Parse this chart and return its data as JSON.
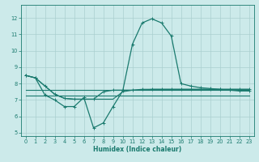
{
  "title": "",
  "xlabel": "Humidex (Indice chaleur)",
  "bg_color": "#cceaea",
  "grid_color": "#aacfcf",
  "line_color": "#1a7a6e",
  "xlim": [
    -0.5,
    23.5
  ],
  "ylim": [
    4.8,
    12.8
  ],
  "xticks": [
    0,
    1,
    2,
    3,
    4,
    5,
    6,
    7,
    8,
    9,
    10,
    11,
    12,
    13,
    14,
    15,
    16,
    17,
    18,
    19,
    20,
    21,
    22,
    23
  ],
  "yticks": [
    5,
    6,
    7,
    8,
    9,
    10,
    11,
    12
  ],
  "lines": [
    {
      "x": [
        0,
        1,
        2,
        3,
        4,
        5,
        6,
        7,
        8,
        9,
        10,
        11,
        12,
        13,
        14,
        15,
        16,
        17,
        18,
        19,
        20,
        21,
        22,
        23
      ],
      "y": [
        8.5,
        8.35,
        7.85,
        7.35,
        7.1,
        7.05,
        7.05,
        7.05,
        7.5,
        7.6,
        7.6,
        7.6,
        7.65,
        7.65,
        7.65,
        7.65,
        7.65,
        7.65,
        7.65,
        7.65,
        7.65,
        7.65,
        7.65,
        7.65
      ],
      "marker": true,
      "lw": 0.9
    },
    {
      "x": [
        0,
        1,
        2,
        3,
        4,
        5,
        6,
        7,
        8,
        9,
        10,
        11,
        12,
        13,
        14,
        15,
        16,
        17,
        18,
        19,
        20,
        21,
        22,
        23
      ],
      "y": [
        8.5,
        8.35,
        7.3,
        7.0,
        6.6,
        6.6,
        7.15,
        5.3,
        5.6,
        6.6,
        7.55,
        10.4,
        11.7,
        11.95,
        11.7,
        10.9,
        8.0,
        7.85,
        7.75,
        7.7,
        7.65,
        7.6,
        7.55,
        7.55
      ],
      "marker": true,
      "lw": 0.9
    },
    {
      "x": [
        0,
        1,
        2,
        3,
        4,
        5,
        6,
        7,
        8,
        9,
        10,
        11,
        12,
        13,
        14,
        15,
        16,
        17,
        18,
        19,
        20,
        21,
        22,
        23
      ],
      "y": [
        7.25,
        7.25,
        7.25,
        7.25,
        7.25,
        7.25,
        7.25,
        7.25,
        7.25,
        7.25,
        7.25,
        7.25,
        7.25,
        7.25,
        7.25,
        7.25,
        7.25,
        7.25,
        7.25,
        7.25,
        7.25,
        7.25,
        7.25,
        7.25
      ],
      "marker": false,
      "lw": 0.8
    },
    {
      "x": [
        0,
        1,
        2,
        3,
        4,
        5,
        6,
        7,
        8,
        9,
        10,
        11,
        12,
        13,
        14,
        15,
        16,
        17,
        18,
        19,
        20,
        21,
        22,
        23
      ],
      "y": [
        7.6,
        7.6,
        7.6,
        7.6,
        7.6,
        7.6,
        7.6,
        7.6,
        7.6,
        7.6,
        7.6,
        7.6,
        7.6,
        7.6,
        7.6,
        7.6,
        7.6,
        7.6,
        7.6,
        7.6,
        7.6,
        7.6,
        7.6,
        7.6
      ],
      "marker": false,
      "lw": 0.8
    },
    {
      "x": [
        0,
        1,
        2,
        3,
        4,
        5,
        6,
        7,
        8,
        9,
        10,
        11,
        12,
        13,
        14,
        15,
        16,
        17,
        18,
        19,
        20,
        21,
        22,
        23
      ],
      "y": [
        8.5,
        8.35,
        7.85,
        7.35,
        7.1,
        7.05,
        7.05,
        7.05,
        7.05,
        7.05,
        7.5,
        7.6,
        7.6,
        7.65,
        7.65,
        7.65,
        7.65,
        7.65,
        7.65,
        7.65,
        7.65,
        7.65,
        7.65,
        7.65
      ],
      "marker": false,
      "lw": 0.8
    }
  ]
}
